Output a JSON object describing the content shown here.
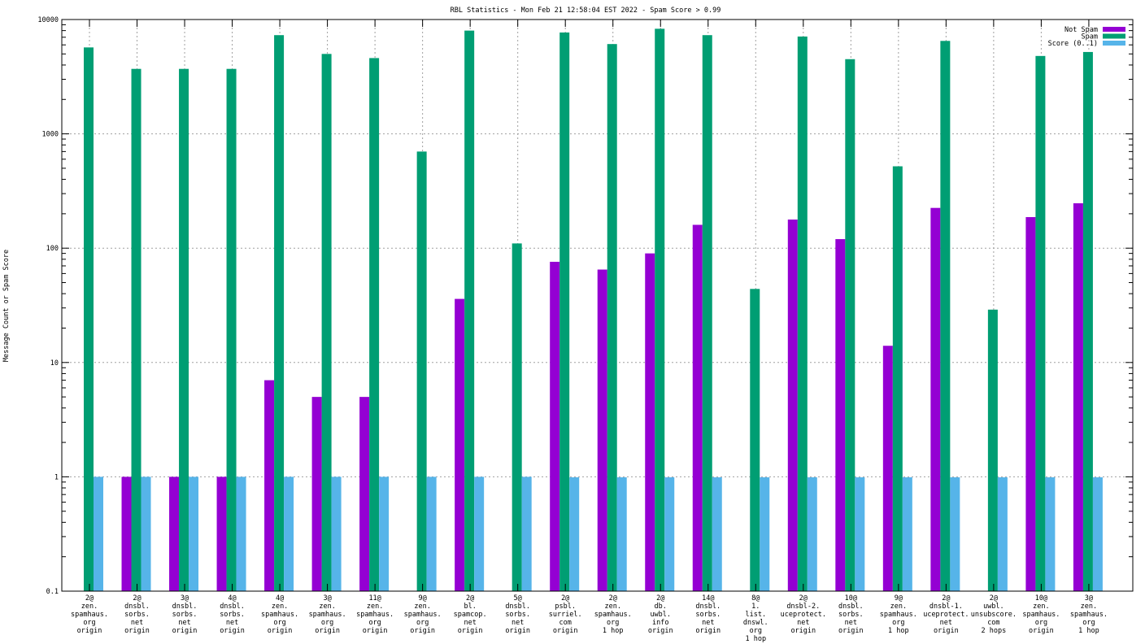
{
  "chart_data": {
    "type": "bar",
    "title": "RBL Statistics - Mon Feb 21 12:58:04 EST 2022 - Spam Score > 0.99",
    "xlabel": "",
    "ylabel": "Message Count or Spam Score",
    "yscale": "log",
    "ylim": [
      0.1,
      10000
    ],
    "yticks": [
      "0.1",
      "1",
      "10",
      "100",
      "1000",
      "10000"
    ],
    "grid": true,
    "legend_position": "top-right",
    "categories": [
      [
        "2@",
        "zen.",
        "spamhaus.",
        "org",
        "origin"
      ],
      [
        "2@",
        "dnsbl.",
        "sorbs.",
        "net",
        "origin"
      ],
      [
        "3@",
        "dnsbl.",
        "sorbs.",
        "net",
        "origin"
      ],
      [
        "4@",
        "dnsbl.",
        "sorbs.",
        "net",
        "origin"
      ],
      [
        "4@",
        "zen.",
        "spamhaus.",
        "org",
        "origin"
      ],
      [
        "3@",
        "zen.",
        "spamhaus.",
        "org",
        "origin"
      ],
      [
        "11@",
        "zen.",
        "spamhaus.",
        "org",
        "origin"
      ],
      [
        "9@",
        "zen.",
        "spamhaus.",
        "org",
        "origin"
      ],
      [
        "2@",
        "bl.",
        "spamcop.",
        "net",
        "origin"
      ],
      [
        "5@",
        "dnsbl.",
        "sorbs.",
        "net",
        "origin"
      ],
      [
        "2@",
        "psbl.",
        "surriel.",
        "com",
        "origin"
      ],
      [
        "2@",
        "zen.",
        "spamhaus.",
        "org",
        "1 hop"
      ],
      [
        "2@",
        "db.",
        "uwbl.",
        "info",
        "origin"
      ],
      [
        "14@",
        "dnsbl.",
        "sorbs.",
        "net",
        "origin"
      ],
      [
        "8@",
        "1.",
        "list.",
        "dnswl.",
        "org",
        "1 hop"
      ],
      [
        "2@",
        "dnsbl-2.",
        "uceprotect.",
        "net",
        "origin"
      ],
      [
        "10@",
        "dnsbl.",
        "sorbs.",
        "net",
        "origin"
      ],
      [
        "9@",
        "zen.",
        "spamhaus.",
        "org",
        "1 hop"
      ],
      [
        "2@",
        "dnsbl-1.",
        "uceprotect.",
        "net",
        "origin"
      ],
      [
        "2@",
        "uwbl.",
        "unsubscore.",
        "com",
        "2 hops"
      ],
      [
        "10@",
        "zen.",
        "spamhaus.",
        "org",
        "origin"
      ],
      [
        "3@",
        "zen.",
        "spamhaus.",
        "org",
        "1 hop"
      ]
    ],
    "series": [
      {
        "name": "Not Spam",
        "color": "#9400d3",
        "values": [
          0,
          1,
          1,
          1,
          7,
          5,
          5,
          0,
          36,
          0,
          76,
          65,
          90,
          160,
          0,
          178,
          120,
          14,
          225,
          0,
          187,
          247
        ]
      },
      {
        "name": "Spam",
        "color": "#009e73",
        "values": [
          5700,
          3700,
          3700,
          3700,
          7300,
          5000,
          4600,
          700,
          8000,
          110,
          7700,
          6100,
          8300,
          7300,
          44,
          7100,
          4500,
          520,
          6500,
          29,
          4800,
          5200
        ]
      },
      {
        "name": "Score (0..1)",
        "color": "#56b4e9",
        "values": [
          1,
          1,
          1,
          1,
          1,
          1,
          1,
          1,
          1,
          1,
          0.99,
          0.99,
          0.99,
          0.99,
          0.99,
          0.99,
          0.99,
          0.99,
          0.99,
          0.99,
          0.99,
          0.99
        ]
      }
    ]
  }
}
